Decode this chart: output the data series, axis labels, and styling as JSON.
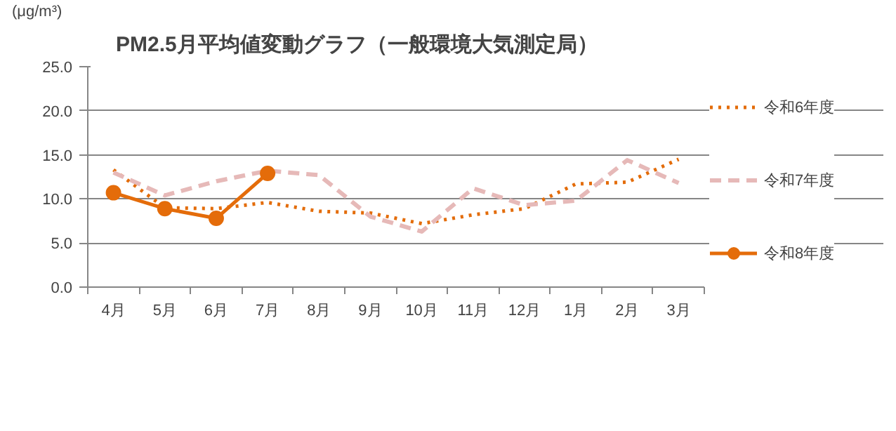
{
  "chart_data": {
    "type": "line",
    "title": "PM2.5月平均値変動グラフ（一般環境大気測定局）",
    "ylabel": "(μg/m³)",
    "categories": [
      "4月",
      "5月",
      "6月",
      "7月",
      "8月",
      "9月",
      "10月",
      "11月",
      "12月",
      "1月",
      "2月",
      "3月"
    ],
    "ylim": [
      0,
      25
    ],
    "yticks": [
      {
        "value": 0,
        "label": "0.0"
      },
      {
        "value": 5,
        "label": "5.0"
      },
      {
        "value": 10,
        "label": "10.0"
      },
      {
        "value": 15,
        "label": "15.0"
      },
      {
        "value": 20,
        "label": "20.0"
      },
      {
        "value": 25,
        "label": "25.0"
      }
    ],
    "grid": "y",
    "legend": "right",
    "series": [
      {
        "name": "令和6年度",
        "color": "#e36c09",
        "line_style": "dotted",
        "marker": "none",
        "values": [
          13.3,
          9.0,
          8.9,
          9.6,
          8.6,
          8.4,
          7.2,
          8.2,
          8.9,
          11.7,
          11.9,
          14.5
        ]
      },
      {
        "name": "令和7年度",
        "color": "#e6b9b8",
        "line_style": "dashed",
        "marker": "none",
        "values": [
          13.0,
          10.4,
          12.0,
          13.2,
          12.7,
          8.0,
          6.3,
          11.2,
          9.3,
          9.8,
          14.4,
          11.8
        ]
      },
      {
        "name": "令和8年度",
        "color": "#e46c0a",
        "line_style": "solid",
        "marker": "circle",
        "values": [
          10.7,
          8.9,
          7.8,
          12.9,
          null,
          null,
          null,
          null,
          null,
          null,
          null,
          null
        ]
      }
    ]
  }
}
